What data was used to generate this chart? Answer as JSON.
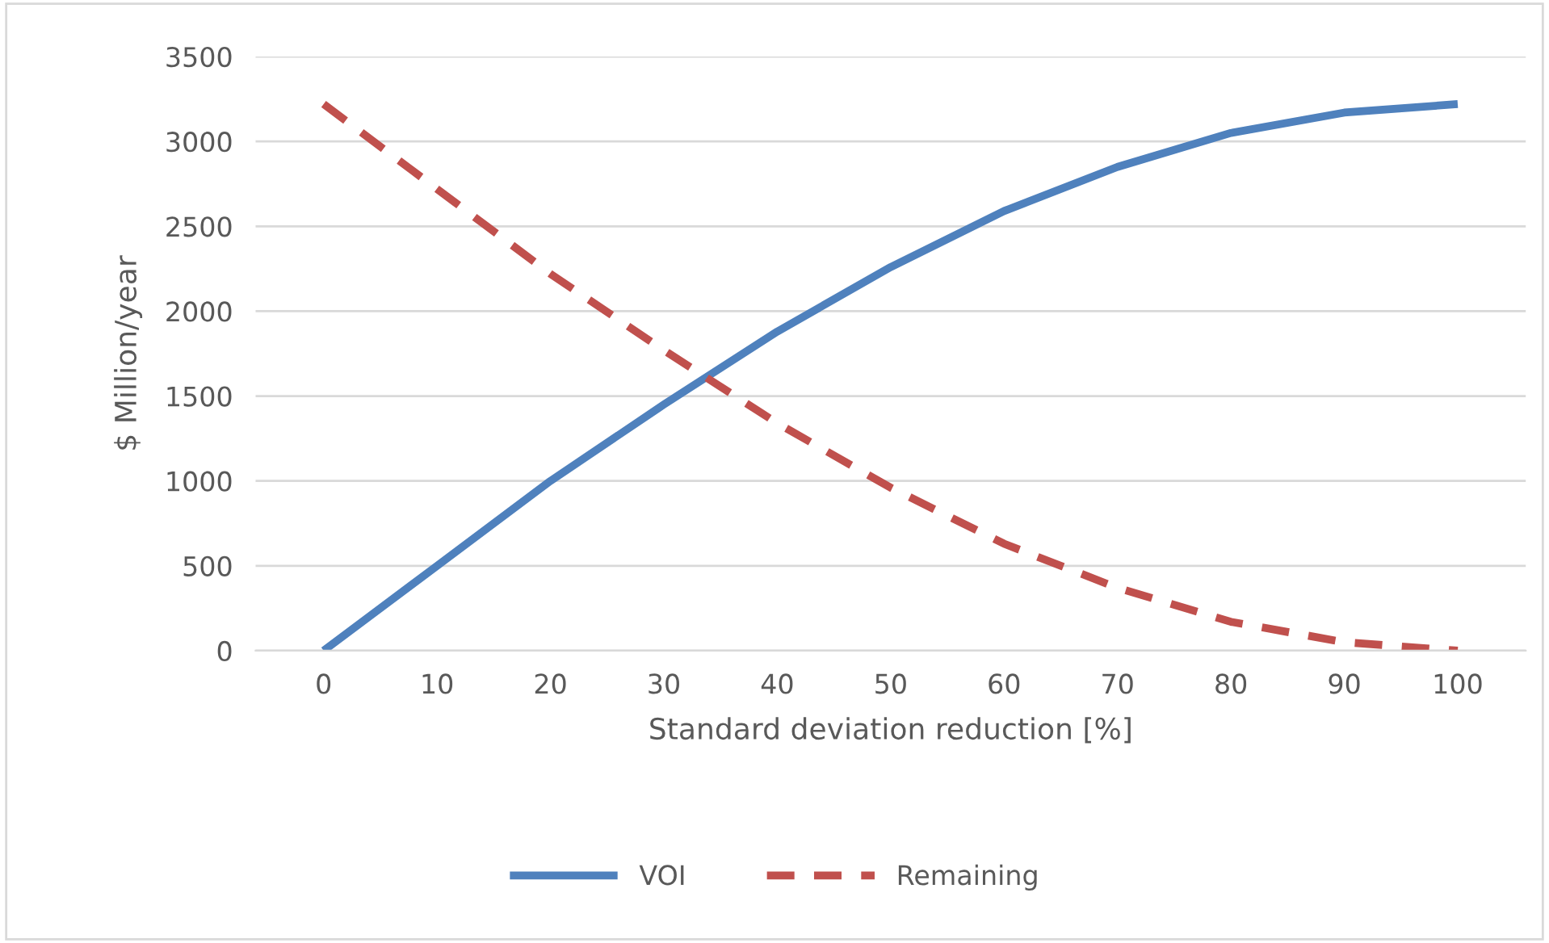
{
  "chart_data": {
    "type": "line",
    "xlabel": "Standard deviation reduction [%]",
    "ylabel": "$ Million/year",
    "categories": [
      "0",
      "10",
      "20",
      "30",
      "40",
      "50",
      "60",
      "70",
      "80",
      "90",
      "100"
    ],
    "series": [
      {
        "name": "VOI",
        "color": "#4f81bd",
        "line_style": "solid",
        "values": [
          0,
          500,
          1000,
          1450,
          1880,
          2260,
          2590,
          2850,
          3050,
          3170,
          3220
        ]
      },
      {
        "name": "Remaining",
        "color": "#c0504d",
        "line_style": "dashed",
        "values": [
          3220,
          2720,
          2220,
          1770,
          1340,
          960,
          630,
          370,
          170,
          50,
          0
        ]
      }
    ],
    "ylim": [
      0,
      3500
    ],
    "yticks": [
      0,
      500,
      1000,
      1500,
      2000,
      2500,
      3000,
      3500
    ],
    "grid": "y",
    "legend": "bottom",
    "marker": "none"
  }
}
